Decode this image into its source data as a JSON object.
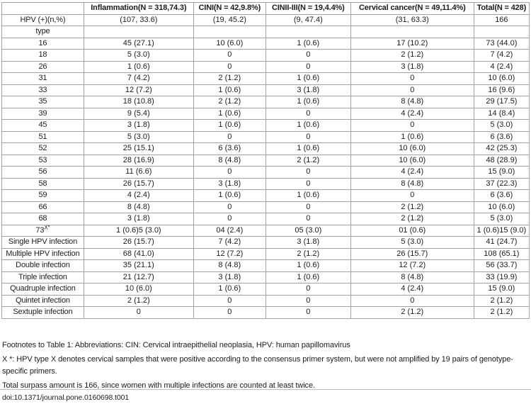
{
  "table": {
    "headers": [
      "",
      "Inflammation(N = 318,74.3)",
      "CINI(N = 42,9.8%)",
      "CINII-III(N = 19,4.4%)",
      "Cervical cancer(N = 49,11.4%)",
      "Total(N = 428)"
    ],
    "rows": [
      {
        "label": "HPV (+)(n,%)",
        "cells": [
          "(107, 33.6)",
          "(19, 45.2)",
          "(9, 47.4)",
          "(31, 63.3)",
          "166"
        ]
      },
      {
        "label": "type",
        "cells": [
          "",
          "",
          "",
          "",
          ""
        ]
      },
      {
        "label": "16",
        "cells": [
          "45 (27.1)",
          "10 (6.0)",
          "1 (0.6)",
          "17 (10.2)",
          "73 (44.0)"
        ]
      },
      {
        "label": "18",
        "cells": [
          "5 (3.0)",
          "0",
          "0",
          "2 (1.2)",
          "7 (4.2)"
        ]
      },
      {
        "label": "26",
        "cells": [
          "1 (0.6)",
          "0",
          "0",
          "3 (1.8)",
          "4 (2.4)"
        ]
      },
      {
        "label": "31",
        "cells": [
          "7 (4.2)",
          "2 (1.2)",
          "1 (0.6)",
          "0",
          "10 (6.0)"
        ]
      },
      {
        "label": "33",
        "cells": [
          "12 (7.2)",
          "1 (0.6)",
          "3 (1.8)",
          "0",
          "16 (9.6)"
        ]
      },
      {
        "label": "35",
        "cells": [
          "18 (10.8)",
          "2 (1.2)",
          "1 (0.6)",
          "8 (4.8)",
          "29 (17.5)"
        ]
      },
      {
        "label": "39",
        "cells": [
          "9 (5.4)",
          "1 (0.6)",
          "0",
          "4 (2.4)",
          "14 (8.4)"
        ]
      },
      {
        "label": "45",
        "cells": [
          "3 (1.8)",
          "1 (0.6)",
          "1 (0.6)",
          "0",
          "5 (3.0)"
        ]
      },
      {
        "label": "51",
        "cells": [
          "5 (3.0)",
          "0",
          "0",
          "1 (0.6)",
          "6 (3.6)"
        ]
      },
      {
        "label": "52",
        "cells": [
          "25 (15.1)",
          "6 (3.6)",
          "1 (0.6)",
          "10 (6.0)",
          "42 (25.3)"
        ]
      },
      {
        "label": "53",
        "cells": [
          "28 (16.9)",
          "8 (4.8)",
          "2 (1.2)",
          "10 (6.0)",
          "48 (28.9)"
        ]
      },
      {
        "label": "56",
        "cells": [
          "11 (6.6)",
          "0",
          "0",
          "4 (2.4)",
          "15 (9.0)"
        ]
      },
      {
        "label": "58",
        "cells": [
          "26 (15.7)",
          "3 (1.8)",
          "0",
          "8 (4.8)",
          "37 (22.3)"
        ]
      },
      {
        "label": "59",
        "cells": [
          "4 (2.4)",
          "1 (0.6)",
          "1 (0.6)",
          "0",
          "6 (3.6)"
        ]
      },
      {
        "label": "66",
        "cells": [
          "8 (4.8)",
          "0",
          "0",
          "2 (1.2)",
          "10 (6.0)"
        ]
      },
      {
        "label": "68",
        "cells": [
          "3 (1.8)",
          "0",
          "0",
          "2 (1.2)",
          "5 (3.0)"
        ]
      },
      {
        "label": "73",
        "label_sup": "X*",
        "cells": [
          "1 (0.6)5 (3.0)",
          "04 (2.4)",
          "05 (3.0)",
          "01 (0.6)",
          "1 (0.6)15 (9.0)"
        ]
      },
      {
        "label": "Single HPV infection",
        "cells": [
          "26 (15.7)",
          "7 (4.2)",
          "3 (1.8)",
          "5 (3.0)",
          "41 (24.7)"
        ]
      },
      {
        "label": "Multiple HPV infection",
        "cells": [
          "68 (41.0)",
          "12 (7.2)",
          "2 (1.2)",
          "26 (15.7)",
          "108 (65.1)"
        ]
      },
      {
        "label": "Double infection",
        "cells": [
          "35 (21.1)",
          "8 (4.8)",
          "1 (0.6)",
          "12 (7.2)",
          "56 (33.7)"
        ]
      },
      {
        "label": "Triple infection",
        "cells": [
          "21 (12.7)",
          "3 (1.8)",
          "1 (0.6)",
          "8 (4.8)",
          "33 (19.9)"
        ]
      },
      {
        "label": "Quadruple infection",
        "cells": [
          "10 (6.0)",
          "1 (0.6)",
          "0",
          "4 (2.4)",
          "15 (9.0)"
        ]
      },
      {
        "label": "Quintet infection",
        "cells": [
          "2 (1.2)",
          "0",
          "0",
          "0",
          "2 (1.2)"
        ]
      },
      {
        "label": "Sextuple infection",
        "cells": [
          "0",
          "0",
          "0",
          "2 (1.2)",
          "2 (1.2)"
        ]
      }
    ]
  },
  "footnotes": {
    "line1": "Footnotes to Table 1: Abbreviations: CIN: Cervical intraepithelial neoplasia, HPV: human papillomavirus",
    "line2": "X *: HPV type X denotes cervical samples that were positive according to the consensus primer system, but were not amplified by 19 pairs of genotype-specific primers.",
    "line3": "Total surpass amount is 166, since women with multiple infections are counted at least twice."
  },
  "doi": "doi:10.1371/journal.pone.0160698.t001",
  "colors": {
    "table_border": "#a3a3a3",
    "text": "#1c1c1c",
    "rule": "#bdbdbd"
  }
}
